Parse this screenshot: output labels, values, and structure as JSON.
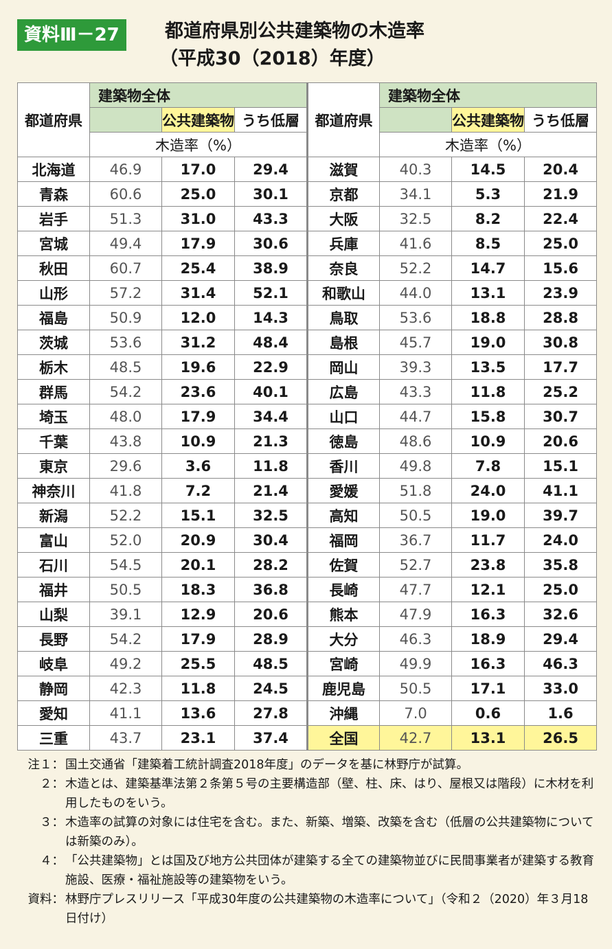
{
  "badge": "資料Ⅲ－27",
  "title": [
    "都道府県別公共建築物の木造率",
    "（平成30（2018）年度）"
  ],
  "headers": {
    "prefecture": "都道府県",
    "all_buildings": "建築物全体",
    "public": "公共建築物",
    "low_rise": "うち低層",
    "unit": "木造率（%）"
  },
  "left_rows": [
    {
      "pref": "北海道",
      "all": "46.9",
      "pub": "17.0",
      "low": "29.4"
    },
    {
      "pref": "青森",
      "all": "60.6",
      "pub": "25.0",
      "low": "30.1"
    },
    {
      "pref": "岩手",
      "all": "51.3",
      "pub": "31.0",
      "low": "43.3"
    },
    {
      "pref": "宮城",
      "all": "49.4",
      "pub": "17.9",
      "low": "30.6"
    },
    {
      "pref": "秋田",
      "all": "60.7",
      "pub": "25.4",
      "low": "38.9"
    },
    {
      "pref": "山形",
      "all": "57.2",
      "pub": "31.4",
      "low": "52.1"
    },
    {
      "pref": "福島",
      "all": "50.9",
      "pub": "12.0",
      "low": "14.3"
    },
    {
      "pref": "茨城",
      "all": "53.6",
      "pub": "31.2",
      "low": "48.4"
    },
    {
      "pref": "栃木",
      "all": "48.5",
      "pub": "19.6",
      "low": "22.9"
    },
    {
      "pref": "群馬",
      "all": "54.2",
      "pub": "23.6",
      "low": "40.1"
    },
    {
      "pref": "埼玉",
      "all": "48.0",
      "pub": "17.9",
      "low": "34.4"
    },
    {
      "pref": "千葉",
      "all": "43.8",
      "pub": "10.9",
      "low": "21.3"
    },
    {
      "pref": "東京",
      "all": "29.6",
      "pub": "3.6",
      "low": "11.8"
    },
    {
      "pref": "神奈川",
      "all": "41.8",
      "pub": "7.2",
      "low": "21.4"
    },
    {
      "pref": "新潟",
      "all": "52.2",
      "pub": "15.1",
      "low": "32.5"
    },
    {
      "pref": "富山",
      "all": "52.0",
      "pub": "20.9",
      "low": "30.4"
    },
    {
      "pref": "石川",
      "all": "54.5",
      "pub": "20.1",
      "low": "28.2"
    },
    {
      "pref": "福井",
      "all": "50.5",
      "pub": "18.3",
      "low": "36.8"
    },
    {
      "pref": "山梨",
      "all": "39.1",
      "pub": "12.9",
      "low": "20.6"
    },
    {
      "pref": "長野",
      "all": "54.2",
      "pub": "17.9",
      "low": "28.9"
    },
    {
      "pref": "岐阜",
      "all": "49.2",
      "pub": "25.5",
      "low": "48.5"
    },
    {
      "pref": "静岡",
      "all": "42.3",
      "pub": "11.8",
      "low": "24.5"
    },
    {
      "pref": "愛知",
      "all": "41.1",
      "pub": "13.6",
      "low": "27.8"
    },
    {
      "pref": "三重",
      "all": "43.7",
      "pub": "23.1",
      "low": "37.4"
    }
  ],
  "right_rows": [
    {
      "pref": "滋賀",
      "all": "40.3",
      "pub": "14.5",
      "low": "20.4"
    },
    {
      "pref": "京都",
      "all": "34.1",
      "pub": "5.3",
      "low": "21.9"
    },
    {
      "pref": "大阪",
      "all": "32.5",
      "pub": "8.2",
      "low": "22.4"
    },
    {
      "pref": "兵庫",
      "all": "41.6",
      "pub": "8.5",
      "low": "25.0"
    },
    {
      "pref": "奈良",
      "all": "52.2",
      "pub": "14.7",
      "low": "15.6"
    },
    {
      "pref": "和歌山",
      "all": "44.0",
      "pub": "13.1",
      "low": "23.9"
    },
    {
      "pref": "鳥取",
      "all": "53.6",
      "pub": "18.8",
      "low": "28.8"
    },
    {
      "pref": "島根",
      "all": "45.7",
      "pub": "19.0",
      "low": "30.8"
    },
    {
      "pref": "岡山",
      "all": "39.3",
      "pub": "13.5",
      "low": "17.7"
    },
    {
      "pref": "広島",
      "all": "43.3",
      "pub": "11.8",
      "low": "25.2"
    },
    {
      "pref": "山口",
      "all": "44.7",
      "pub": "15.8",
      "low": "30.7"
    },
    {
      "pref": "徳島",
      "all": "48.6",
      "pub": "10.9",
      "low": "20.6"
    },
    {
      "pref": "香川",
      "all": "49.8",
      "pub": "7.8",
      "low": "15.1"
    },
    {
      "pref": "愛媛",
      "all": "51.8",
      "pub": "24.0",
      "low": "41.1"
    },
    {
      "pref": "高知",
      "all": "50.5",
      "pub": "19.0",
      "low": "39.7"
    },
    {
      "pref": "福岡",
      "all": "36.7",
      "pub": "11.7",
      "low": "24.0"
    },
    {
      "pref": "佐賀",
      "all": "52.7",
      "pub": "23.8",
      "low": "35.8"
    },
    {
      "pref": "長崎",
      "all": "47.7",
      "pub": "12.1",
      "low": "25.0"
    },
    {
      "pref": "熊本",
      "all": "47.9",
      "pub": "16.3",
      "low": "32.6"
    },
    {
      "pref": "大分",
      "all": "46.3",
      "pub": "18.9",
      "low": "29.4"
    },
    {
      "pref": "宮崎",
      "all": "49.9",
      "pub": "16.3",
      "low": "46.3"
    },
    {
      "pref": "鹿児島",
      "all": "50.5",
      "pub": "17.1",
      "low": "33.0"
    },
    {
      "pref": "沖縄",
      "all": "7.0",
      "pub": "0.6",
      "low": "1.6"
    },
    {
      "pref": "全国",
      "all": "42.7",
      "pub": "13.1",
      "low": "26.5"
    }
  ],
  "notes": [
    {
      "label": "注１：",
      "text": "国土交通省「建築着工統計調査2018年度」のデータを基に林野庁が試算。"
    },
    {
      "label": "２：",
      "text": "木造とは、建築基準法第２条第５号の主要構造部（壁、柱、床、はり、屋根又は階段）に木材を利用したものをいう。"
    },
    {
      "label": "３：",
      "text": "木造率の試算の対象には住宅を含む。また、新築、増築、改築を含む（低層の公共建築物については新築のみ）。"
    },
    {
      "label": "４：",
      "text": "「公共建築物」とは国及び地方公共団体が建築する全ての建築物並びに民間事業者が建築する教育施設、医療・福祉施設等の建築物をいう。"
    },
    {
      "label": "資料：",
      "text": "林野庁プレスリリース「平成30年度の公共建築物の木造率について」（令和２（2020）年３月18日付け）"
    }
  ]
}
